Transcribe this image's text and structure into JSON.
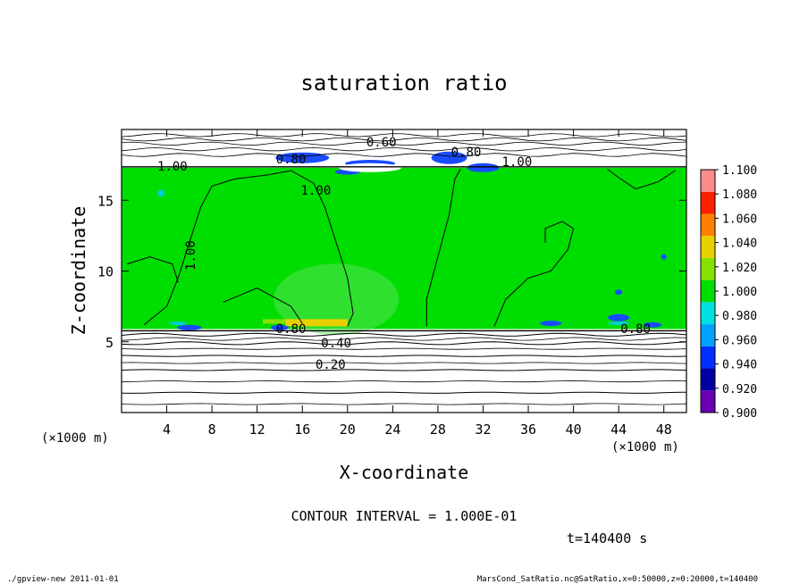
{
  "chart_data": {
    "type": "heatmap",
    "title": "saturation ratio",
    "xlabel": "X-coordinate",
    "ylabel": "Z-coordinate",
    "x_unit": "(×1000 m)",
    "y_unit": "(×1000 m)",
    "xlim": [
      0,
      50
    ],
    "ylim": [
      0,
      20
    ],
    "x_ticks": [
      4,
      8,
      12,
      16,
      20,
      24,
      28,
      32,
      36,
      40,
      44,
      48
    ],
    "y_ticks": [
      5,
      10,
      15
    ],
    "colorbar": {
      "levels": [
        "0.900",
        "0.920",
        "0.940",
        "0.960",
        "0.980",
        "1.000",
        "1.020",
        "1.040",
        "1.060",
        "1.080",
        "1.100"
      ],
      "colors": [
        "#6a00b0",
        "#0000a0",
        "#0030ff",
        "#00a0ff",
        "#00e0e0",
        "#00dd00",
        "#88e000",
        "#e8d000",
        "#ff8000",
        "#ff2000",
        "#ff8a8a"
      ]
    },
    "contour_labels": [
      "0.60",
      "0.80",
      "0.80",
      "1.00",
      "1.00",
      "1.00",
      "1.00",
      "0.80",
      "0.80",
      "0.40",
      "0.20"
    ],
    "contour_interval": "CONTOUR INTERVAL = 1.000E-01",
    "time": "t=140400 s",
    "footer_left": "./gpview-new  2011-01-01",
    "footer_right": "MarsCond_SatRatio.nc@SatRatio,x=0:50000,z=0:20000,t=140400"
  },
  "colors": {
    "field_main": "#00dd00",
    "field_blue": "#1a4cff",
    "field_cyan": "#00d0d0",
    "background": "#ffffff"
  }
}
